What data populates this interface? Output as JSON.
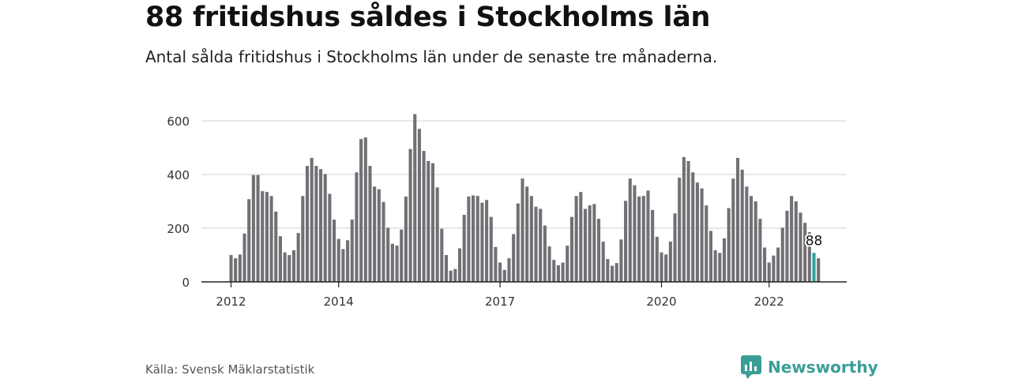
{
  "colors": {
    "bar": "#717075",
    "highlight": "#2aa198",
    "grid": "#d9d9d9",
    "axis": "#222222",
    "brand": "#3a9e97"
  },
  "source_text": "Källa: Svensk Mäklarstatistik",
  "brand": {
    "name": "Newsworthy",
    "icon": "chart-logo-icon"
  },
  "chart_data": {
    "type": "bar",
    "title": "88 fritidshus såldes i Stockholms län",
    "subtitle": "Antal sålda fritidshus i Stockholms län under de senaste tre månaderna.",
    "x_ticks": [
      {
        "index": 0,
        "label": "2012"
      },
      {
        "index": 24,
        "label": "2014"
      },
      {
        "index": 60,
        "label": "2017"
      },
      {
        "index": 96,
        "label": "2020"
      },
      {
        "index": 120,
        "label": "2022"
      }
    ],
    "ylim": [
      0,
      650
    ],
    "y_ticks": [
      0,
      200,
      400,
      600
    ],
    "grid": true,
    "highlight_index": 130,
    "highlight_label": "88",
    "values": [
      100,
      88,
      102,
      180,
      308,
      398,
      398,
      338,
      335,
      320,
      262,
      170,
      110,
      100,
      118,
      182,
      320,
      432,
      462,
      432,
      420,
      402,
      328,
      232,
      160,
      122,
      155,
      232,
      408,
      532,
      538,
      432,
      355,
      345,
      298,
      202,
      142,
      135,
      195,
      318,
      495,
      625,
      570,
      488,
      450,
      442,
      352,
      198,
      100,
      42,
      48,
      125,
      250,
      318,
      322,
      320,
      295,
      305,
      242,
      130,
      72,
      45,
      88,
      178,
      292,
      385,
      355,
      320,
      280,
      272,
      210,
      132,
      82,
      62,
      72,
      135,
      242,
      320,
      335,
      272,
      285,
      290,
      235,
      150,
      85,
      60,
      70,
      158,
      302,
      385,
      360,
      318,
      320,
      340,
      268,
      168,
      110,
      102,
      150,
      255,
      388,
      465,
      450,
      408,
      370,
      348,
      285,
      190,
      118,
      108,
      162,
      275,
      385,
      462,
      418,
      355,
      320,
      300,
      235,
      128,
      72,
      98,
      128,
      202,
      265,
      320,
      300,
      258,
      220,
      185,
      108,
      88
    ]
  }
}
